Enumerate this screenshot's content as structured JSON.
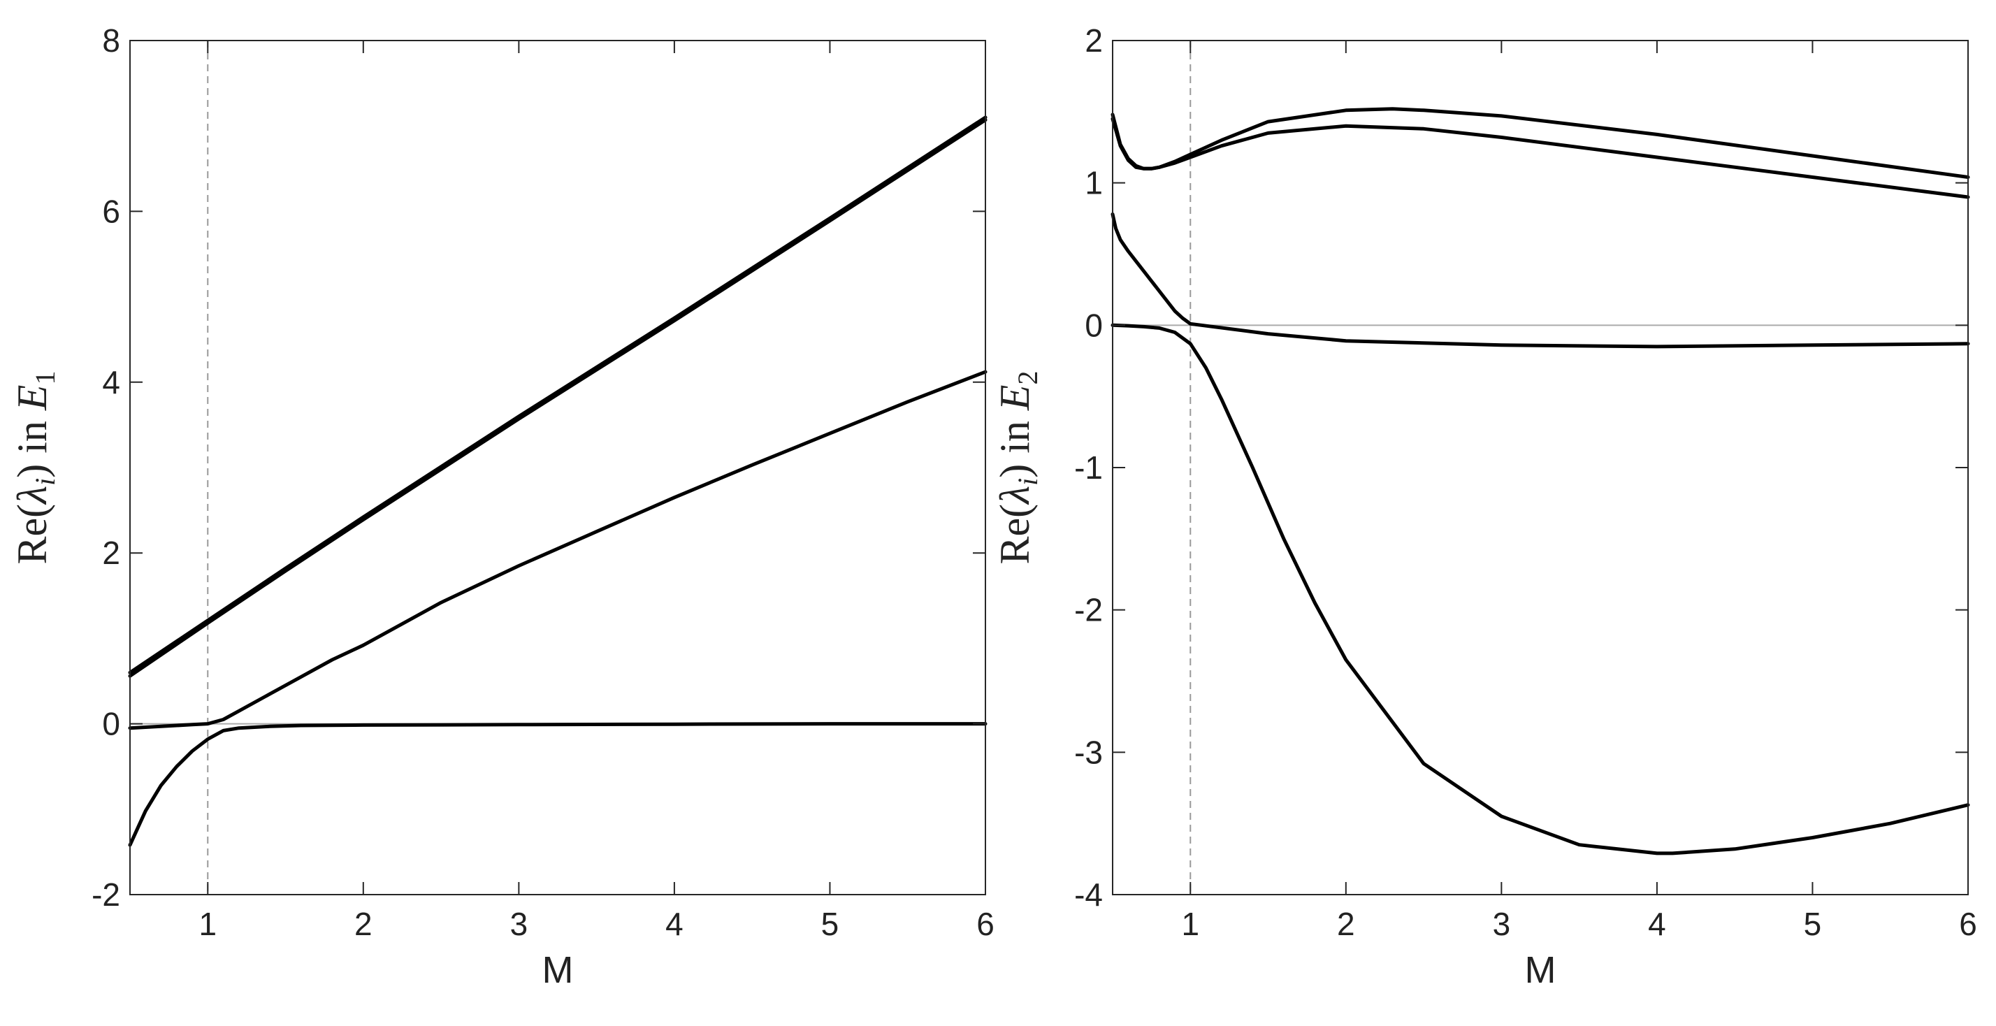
{
  "chart_data": [
    {
      "type": "line",
      "xlabel": "M",
      "ylabel": {
        "prefix": "Re(",
        "symbol": "λ",
        "sub": "i",
        "mid": ") in ",
        "var": "E",
        "var_sub": "1"
      },
      "xlim": [
        0.5,
        6
      ],
      "ylim": [
        -2,
        8
      ],
      "xticks": [
        1,
        2,
        3,
        4,
        5,
        6
      ],
      "yticks": [
        -2,
        0,
        2,
        4,
        6,
        8
      ],
      "grid": false,
      "reference_lines": [
        {
          "orientation": "vertical",
          "value": 1,
          "style": "dashed",
          "color": "#999999"
        },
        {
          "orientation": "horizontal",
          "value": 0,
          "style": "solid",
          "color": "#aaaaaa"
        }
      ],
      "series": [
        {
          "color": "#000000",
          "x": [
            0.5,
            1,
            1.5,
            2,
            3,
            4,
            5,
            6
          ],
          "y": [
            0.6,
            1.21,
            1.82,
            2.42,
            3.6,
            4.75,
            5.92,
            7.1
          ]
        },
        {
          "color": "#000000",
          "x": [
            0.5,
            1,
            1.5,
            2,
            3,
            4,
            5,
            6
          ],
          "y": [
            0.56,
            1.18,
            1.79,
            2.39,
            3.57,
            4.72,
            5.89,
            7.07
          ]
        },
        {
          "color": "#000000",
          "x": [
            0.5,
            0.6,
            0.7,
            0.8,
            0.9,
            1.0,
            1.1,
            1.2,
            1.4,
            1.6,
            1.8,
            2.0,
            2.5,
            3.0,
            3.5,
            4.0,
            4.5,
            5.0,
            5.5,
            6.0
          ],
          "y": [
            -0.05,
            -0.04,
            -0.03,
            -0.02,
            -0.01,
            0.0,
            0.05,
            0.15,
            0.35,
            0.55,
            0.75,
            0.92,
            1.42,
            1.85,
            2.25,
            2.65,
            3.03,
            3.4,
            3.77,
            4.12
          ]
        },
        {
          "color": "#000000",
          "x": [
            0.5,
            0.55,
            0.6,
            0.7,
            0.8,
            0.9,
            1.0,
            1.1,
            1.2,
            1.4,
            1.6,
            2.0,
            3.0,
            4.0,
            5.0,
            6.0
          ],
          "y": [
            -1.42,
            -1.22,
            -1.02,
            -0.72,
            -0.5,
            -0.32,
            -0.18,
            -0.08,
            -0.05,
            -0.03,
            -0.02,
            -0.015,
            -0.01,
            -0.005,
            0.0,
            0.0
          ]
        }
      ]
    },
    {
      "type": "line",
      "xlabel": "M",
      "ylabel": {
        "prefix": "Re(",
        "symbol": "λ",
        "sub": "i",
        "mid": ") in ",
        "var": "E",
        "var_sub": "2"
      },
      "xlim": [
        0.5,
        6
      ],
      "ylim": [
        -4,
        2
      ],
      "xticks": [
        1,
        2,
        3,
        4,
        5,
        6
      ],
      "yticks": [
        -4,
        -3,
        -2,
        -1,
        0,
        1,
        2
      ],
      "grid": false,
      "reference_lines": [
        {
          "orientation": "vertical",
          "value": 1,
          "style": "dashed",
          "color": "#999999"
        },
        {
          "orientation": "horizontal",
          "value": 0,
          "style": "solid",
          "color": "#aaaaaa"
        }
      ],
      "series": [
        {
          "color": "#000000",
          "x": [
            0.5,
            0.55,
            0.6,
            0.65,
            0.7,
            0.75,
            0.8,
            0.9,
            1.0,
            1.2,
            1.5,
            2.0,
            2.3,
            2.5,
            3.0,
            4.0,
            5.0,
            6.0
          ],
          "y": [
            1.48,
            1.27,
            1.17,
            1.12,
            1.1,
            1.1,
            1.11,
            1.15,
            1.2,
            1.3,
            1.43,
            1.51,
            1.52,
            1.51,
            1.47,
            1.34,
            1.19,
            1.04
          ]
        },
        {
          "color": "#000000",
          "x": [
            0.5,
            0.55,
            0.6,
            0.65,
            0.7,
            0.75,
            0.8,
            0.9,
            1.0,
            1.2,
            1.5,
            2.0,
            2.5,
            3.0,
            4.0,
            5.0,
            6.0
          ],
          "y": [
            1.45,
            1.26,
            1.16,
            1.11,
            1.1,
            1.1,
            1.11,
            1.14,
            1.18,
            1.26,
            1.35,
            1.4,
            1.38,
            1.32,
            1.18,
            1.04,
            0.9
          ]
        },
        {
          "color": "#000000",
          "x": [
            0.5,
            0.52,
            0.55,
            0.6,
            0.7,
            0.8,
            0.9,
            0.95,
            1.0,
            1.5,
            2.0,
            3.0,
            4.0,
            5.0,
            6.0
          ],
          "y": [
            0.78,
            0.68,
            0.6,
            0.52,
            0.38,
            0.24,
            0.1,
            0.05,
            0.01,
            -0.06,
            -0.11,
            -0.14,
            -0.15,
            -0.14,
            -0.13
          ]
        },
        {
          "color": "#000000",
          "x": [
            0.5,
            0.6,
            0.7,
            0.8,
            0.9,
            1.0,
            1.1,
            1.2,
            1.4,
            1.6,
            1.8,
            2.0,
            2.5,
            3.0,
            3.5,
            4.0,
            4.1,
            4.5,
            5.0,
            5.5,
            6.0
          ],
          "y": [
            0.0,
            -0.004,
            -0.01,
            -0.02,
            -0.05,
            -0.13,
            -0.3,
            -0.52,
            -1.0,
            -1.5,
            -1.95,
            -2.35,
            -3.08,
            -3.45,
            -3.65,
            -3.71,
            -3.71,
            -3.68,
            -3.6,
            -3.5,
            -3.37
          ]
        }
      ]
    }
  ]
}
